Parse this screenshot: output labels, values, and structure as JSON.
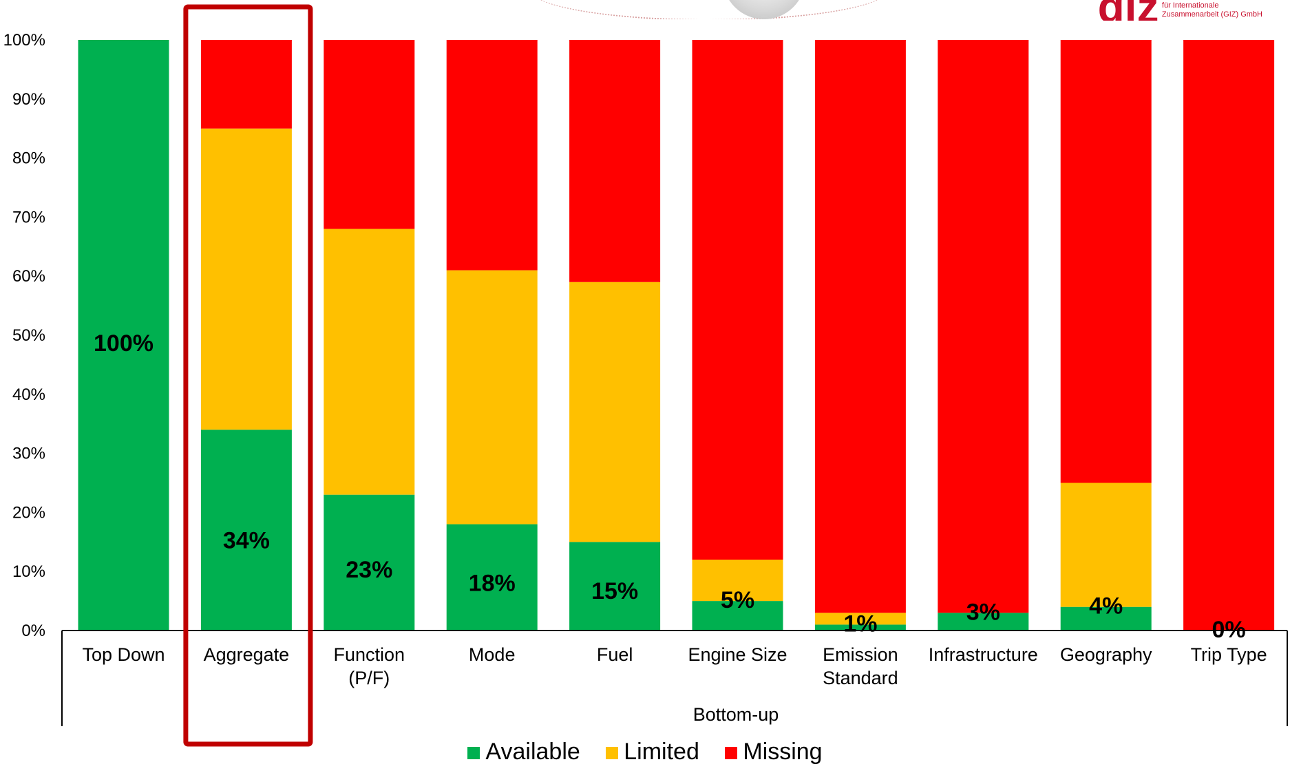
{
  "chart_data": {
    "type": "bar",
    "stacked": true,
    "categories": [
      "Top Down",
      "Aggregate",
      "Function\n(P/F)",
      "Mode",
      "Fuel",
      "Engine Size",
      "Emission\nStandard",
      "Infrastructure",
      "Geography",
      "Trip Type"
    ],
    "group_label": "Bottom-up",
    "series": [
      {
        "name": "Available",
        "color": "#00b050",
        "values": [
          100,
          34,
          23,
          18,
          15,
          5,
          1,
          3,
          4,
          0
        ]
      },
      {
        "name": "Limited",
        "color": "#ffc000",
        "values": [
          0,
          51,
          45,
          43,
          44,
          7,
          2,
          0,
          21,
          0
        ]
      },
      {
        "name": "Missing",
        "color": "#ff0000",
        "values": [
          0,
          15,
          32,
          39,
          41,
          88,
          97,
          97,
          75,
          100
        ]
      }
    ],
    "data_labels": [
      "100%",
      "34%",
      "23%",
      "18%",
      "15%",
      "5%",
      "1%",
      "3%",
      "4%",
      "0%"
    ],
    "yticks": [
      "0%",
      "10%",
      "20%",
      "30%",
      "40%",
      "50%",
      "60%",
      "70%",
      "80%",
      "90%",
      "100%"
    ],
    "ylim": [
      0,
      100
    ],
    "legend_position": "bottom",
    "highlighted_category": "Aggregate",
    "highlight_color": "#c00000"
  },
  "logo": {
    "text": "giz",
    "subtitle_lines": [
      "für Internationale",
      "Zusammenarbeit (GIZ) GmbH"
    ],
    "color": "#c8102e"
  }
}
